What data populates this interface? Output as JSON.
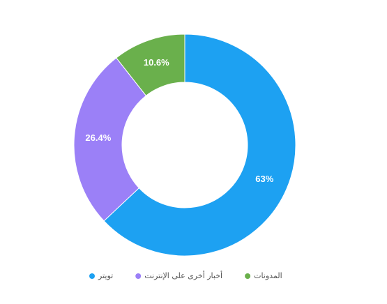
{
  "chart_data": {
    "type": "donut",
    "categories": [
      "تويتر",
      "أخبار أخرى على الإنترنت",
      "المدونات"
    ],
    "values": [
      63,
      26.4,
      10.6
    ],
    "value_labels": [
      "63%",
      "26.4%",
      "10.6%"
    ],
    "colors": [
      "#1da1f2",
      "#9b80f7",
      "#6ab04c"
    ],
    "legend": "bottom"
  }
}
